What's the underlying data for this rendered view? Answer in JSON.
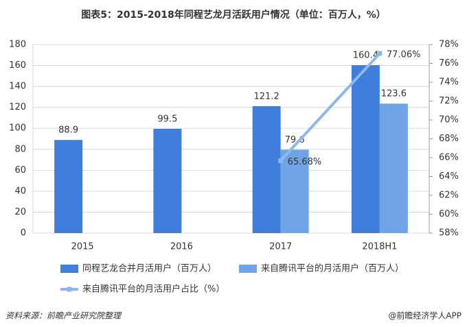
{
  "chart_data": {
    "type": "bar",
    "title": "图表5：2015-2018年同程艺龙月活跃用户情况（单位：百万人，%）",
    "categories": [
      "2015",
      "2016",
      "2017",
      "2018H1"
    ],
    "series": [
      {
        "name": "同程艺龙合并月活用户（百万人）",
        "color": "#3f7fdb",
        "type": "bar",
        "values": [
          88.9,
          99.5,
          121.2,
          160.4
        ]
      },
      {
        "name": "来自腾讯平台的月活用户（百万人）",
        "color": "#6fa4e7",
        "type": "bar",
        "values": [
          null,
          null,
          79.6,
          123.6
        ]
      },
      {
        "name": "来自腾讯平台的月活用户占比（%）",
        "color": "#8bb8ef",
        "type": "line",
        "axis": "y2",
        "values": [
          null,
          null,
          65.68,
          77.06
        ],
        "value_labels": [
          null,
          null,
          "65.68%",
          "77.06%"
        ]
      }
    ],
    "ylim": [
      0,
      180
    ],
    "yticks": [
      0,
      20,
      40,
      60,
      80,
      100,
      120,
      140,
      160,
      180
    ],
    "y2lim": [
      58,
      78
    ],
    "y2ticks": [
      {
        "value": 58,
        "label": "58%"
      },
      {
        "value": 60,
        "label": "60%"
      },
      {
        "value": 62,
        "label": "62%"
      },
      {
        "value": 64,
        "label": "64%"
      },
      {
        "value": 66,
        "label": "66%"
      },
      {
        "value": 68,
        "label": "68%"
      },
      {
        "value": 70,
        "label": "70%"
      },
      {
        "value": 72,
        "label": "72%"
      },
      {
        "value": 74,
        "label": "74%"
      },
      {
        "value": 76,
        "label": "76%"
      },
      {
        "value": 78,
        "label": "78%"
      }
    ],
    "grid": true,
    "legend": "bottom",
    "source": "资料来源：前瞻产业研究院整理",
    "credit": "@前瞻经济学人APP"
  }
}
